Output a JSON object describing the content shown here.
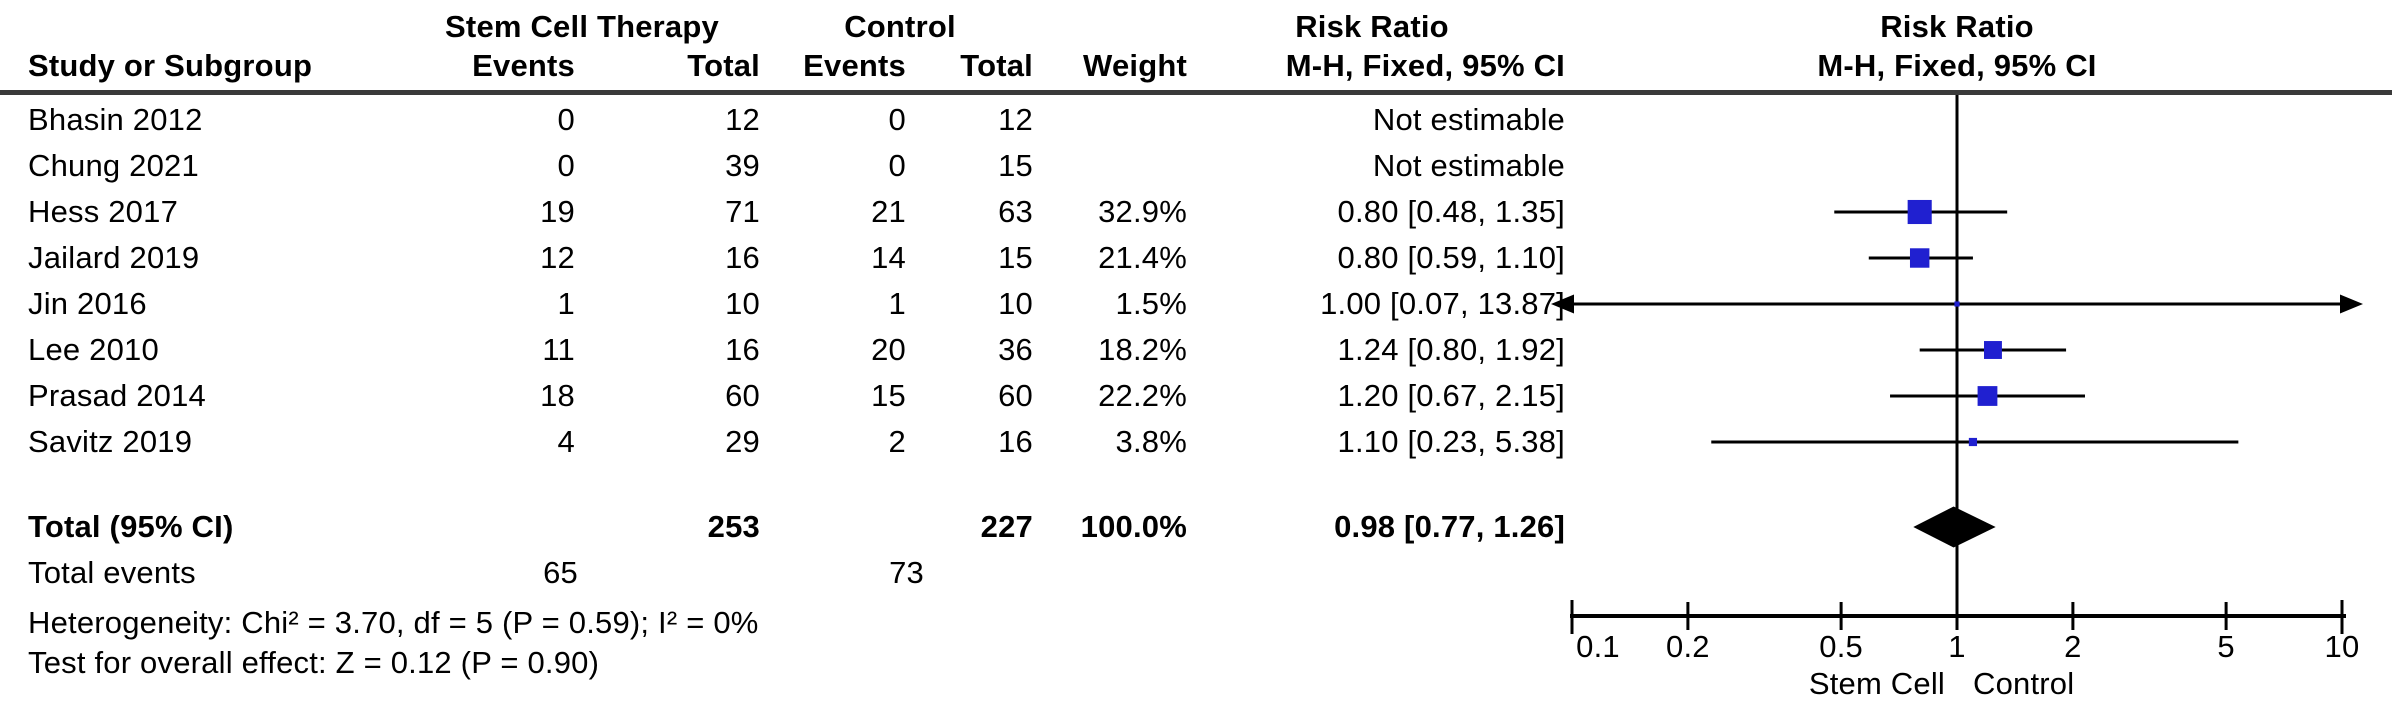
{
  "page": {
    "background": "#ffffff"
  },
  "table": {
    "header": {
      "study_col": "Study or Subgroup",
      "group1": "Stem Cell Therapy",
      "group2": "Control",
      "events1": "Events",
      "total1": "Total",
      "events2": "Events",
      "total2": "Total",
      "weight": "Weight",
      "effect_line1": "Risk Ratio",
      "effect_line2": "M-H, Fixed, 95% CI",
      "plot_line1": "Risk Ratio",
      "plot_line2": "M-H, Fixed, 95% CI"
    }
  },
  "chart_data": {
    "type": "forest",
    "effect_measure": "Risk Ratio",
    "method": "M-H, Fixed, 95% CI",
    "x_scale": "log",
    "x_ticks": [
      0.1,
      0.2,
      0.5,
      1,
      2,
      5,
      10
    ],
    "x_min": 0.1,
    "x_max": 10,
    "axis_label_left": "Stem Cell",
    "axis_label_right": "Control",
    "marker_color": "#2020d0",
    "line_color": "#000000",
    "studies": [
      {
        "name": "Bhasin 2012",
        "events1": "0",
        "total1": "12",
        "events2": "0",
        "total2": "12",
        "weight": "",
        "ci_text": "Not estimable",
        "estimable": false
      },
      {
        "name": "Chung 2021",
        "events1": "0",
        "total1": "39",
        "events2": "0",
        "total2": "15",
        "weight": "",
        "ci_text": "Not estimable",
        "estimable": false
      },
      {
        "name": "Hess 2017",
        "events1": "19",
        "total1": "71",
        "events2": "21",
        "total2": "63",
        "weight": "32.9%",
        "ci_text": "0.80 [0.48, 1.35]",
        "estimable": true,
        "rr": 0.8,
        "ci_low": 0.48,
        "ci_high": 1.35,
        "weight_pct": 32.9
      },
      {
        "name": "Jailard 2019",
        "events1": "12",
        "total1": "16",
        "events2": "14",
        "total2": "15",
        "weight": "21.4%",
        "ci_text": "0.80 [0.59, 1.10]",
        "estimable": true,
        "rr": 0.8,
        "ci_low": 0.59,
        "ci_high": 1.1,
        "weight_pct": 21.4
      },
      {
        "name": "Jin 2016",
        "events1": "1",
        "total1": "10",
        "events2": "1",
        "total2": "10",
        "weight": "1.5%",
        "ci_text": "1.00 [0.07, 13.87]",
        "estimable": true,
        "rr": 1.0,
        "ci_low": 0.07,
        "ci_high": 13.87,
        "weight_pct": 1.5
      },
      {
        "name": "Lee 2010",
        "events1": "11",
        "total1": "16",
        "events2": "20",
        "total2": "36",
        "weight": "18.2%",
        "ci_text": "1.24 [0.80, 1.92]",
        "estimable": true,
        "rr": 1.24,
        "ci_low": 0.8,
        "ci_high": 1.92,
        "weight_pct": 18.2
      },
      {
        "name": "Prasad 2014",
        "events1": "18",
        "total1": "60",
        "events2": "15",
        "total2": "60",
        "weight": "22.2%",
        "ci_text": "1.20 [0.67, 2.15]",
        "estimable": true,
        "rr": 1.2,
        "ci_low": 0.67,
        "ci_high": 2.15,
        "weight_pct": 22.2
      },
      {
        "name": "Savitz 2019",
        "events1": "4",
        "total1": "29",
        "events2": "2",
        "total2": "16",
        "weight": "3.8%",
        "ci_text": "1.10 [0.23, 5.38]",
        "estimable": true,
        "rr": 1.1,
        "ci_low": 0.23,
        "ci_high": 5.38,
        "weight_pct": 3.8
      }
    ],
    "total": {
      "label": "Total (95% CI)",
      "total1": "253",
      "total2": "227",
      "weight": "100.0%",
      "ci_text": "0.98 [0.77, 1.26]",
      "rr": 0.98,
      "ci_low": 0.77,
      "ci_high": 1.26
    },
    "total_events": {
      "label": "Total events",
      "events1": "65",
      "events2": "73"
    },
    "heterogeneity": "Heterogeneity: Chi² = 3.70, df = 5 (P = 0.59); I² = 0%",
    "overall_effect": "Test for overall effect: Z = 0.12 (P = 0.90)"
  }
}
